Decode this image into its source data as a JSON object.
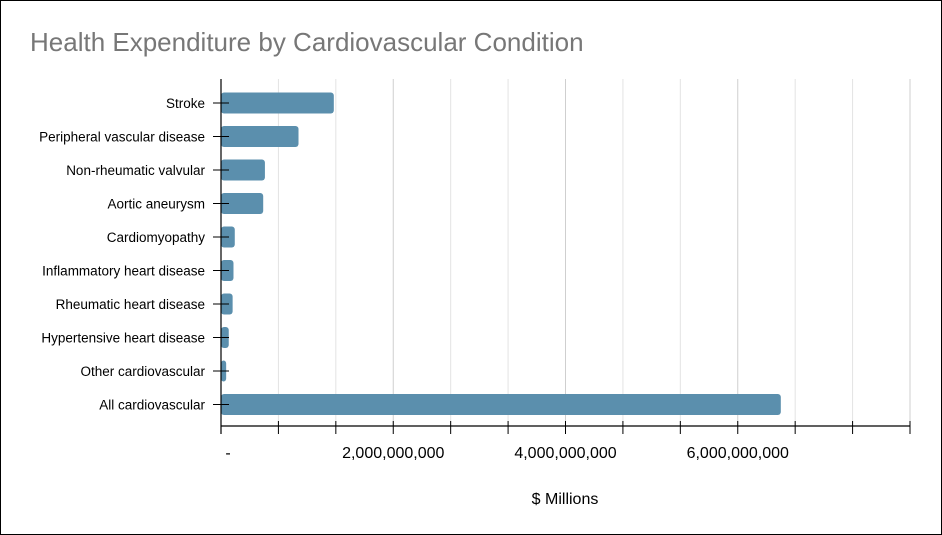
{
  "chart_data": {
    "type": "bar",
    "orientation": "horizontal",
    "title": "Health Expenditure by Cardiovascular Condition",
    "xlabel": "$ Millions",
    "ylabel": "",
    "categories": [
      "Stroke",
      "Peripheral vascular disease",
      "Non-rheumatic valvular",
      "Aortic aneurysm",
      "Cardiomyopathy",
      "Inflammatory heart disease",
      "Rheumatic heart disease",
      "Hypertensive heart disease",
      "Other cardiovascular",
      "All cardiovascular"
    ],
    "values": [
      1310000000,
      900000000,
      510000000,
      490000000,
      160000000,
      145000000,
      135000000,
      90000000,
      60000000,
      6500000000
    ],
    "xlim": [
      0,
      8000000000
    ],
    "xticks": [
      0,
      2000000000,
      4000000000,
      6000000000
    ],
    "xtick_labels": [
      "-",
      "2,000,000,000",
      "4,000,000,000",
      "6,000,000,000"
    ],
    "grid": true,
    "bar_color": "#5b8fad"
  }
}
